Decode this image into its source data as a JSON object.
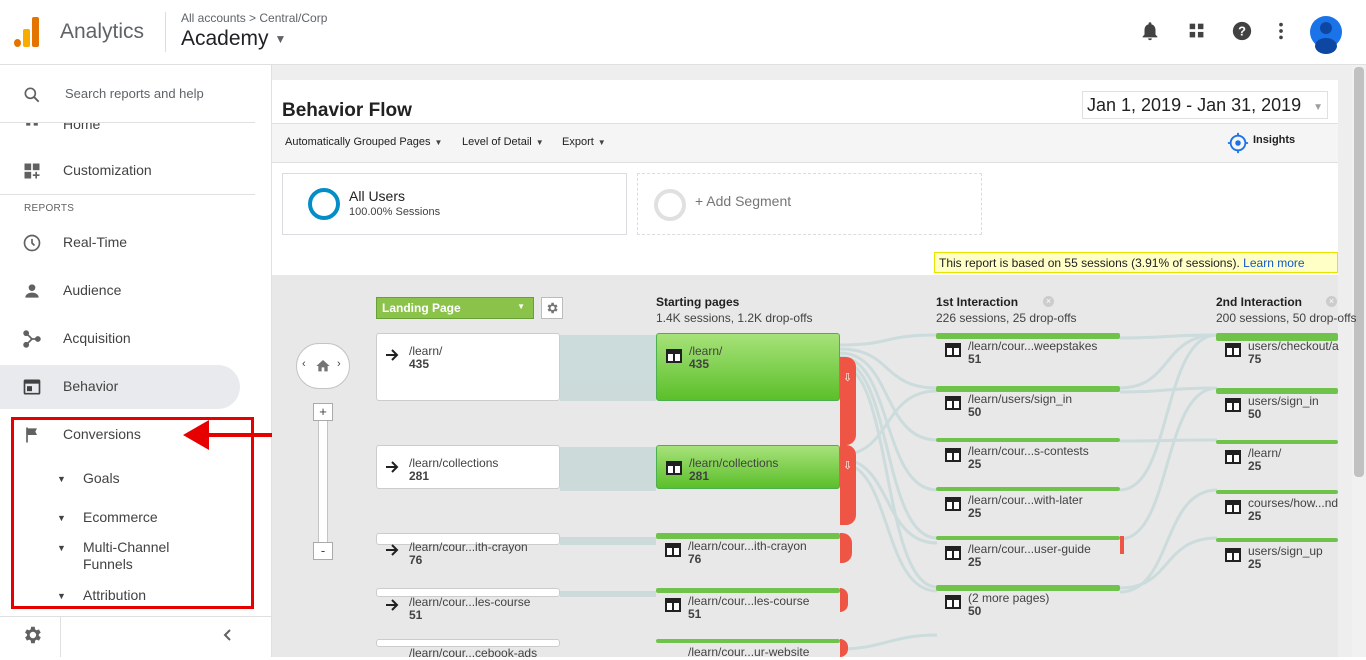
{
  "topbar": {
    "app_name": "Analytics",
    "breadcrumb": "All accounts  >  Central/Corp",
    "account_name": "Academy"
  },
  "sidebar": {
    "search_label": "Search reports and help",
    "home_label": "Home",
    "customization_label": "Customization",
    "section_label": "REPORTS",
    "items": [
      {
        "label": "Real-Time",
        "icon": "clock-icon"
      },
      {
        "label": "Audience",
        "icon": "person-icon"
      },
      {
        "label": "Acquisition",
        "icon": "acquisition-icon"
      },
      {
        "label": "Behavior",
        "icon": "behavior-icon"
      },
      {
        "label": "Conversions",
        "icon": "flag-icon"
      }
    ],
    "conversions_subitems": [
      {
        "label": "Goals"
      },
      {
        "label": "Ecommerce"
      },
      {
        "label": "Multi-Channel Funnels"
      },
      {
        "label": "Attribution"
      }
    ]
  },
  "report": {
    "title": "Behavior Flow",
    "date_range": "Jan 1, 2019 - Jan 31, 2019",
    "toolbar": {
      "grouped_pages": "Automatically Grouped Pages",
      "level_of_detail": "Level of Detail",
      "export": "Export",
      "insights": "Insights"
    },
    "segment": {
      "name": "All Users",
      "sessions": "100.00% Sessions",
      "add": "+ Add Segment"
    },
    "notice": {
      "text": "This report is based on 55 sessions (3.91% of sessions).",
      "link": "Learn more"
    },
    "flow": {
      "dimension": "Landing Page",
      "columns": [
        {
          "title": "Starting pages",
          "subtitle": "1.4K sessions, 1.2K drop-offs"
        },
        {
          "title": "1st Interaction",
          "subtitle": "226 sessions, 25 drop-offs"
        },
        {
          "title": "2nd Interaction",
          "subtitle": "200 sessions, 50 drop-offs"
        }
      ],
      "landing_nodes": [
        {
          "name": "/learn/",
          "count": "435"
        },
        {
          "name": "/learn/collections",
          "count": "281"
        },
        {
          "name": "/learn/cour...ith-crayon",
          "count": "76"
        },
        {
          "name": "/learn/cour...les-course",
          "count": "51"
        },
        {
          "name": "/learn/cour...cebook-ads",
          "count": ""
        }
      ],
      "starting_nodes": [
        {
          "name": "/learn/",
          "count": "435"
        },
        {
          "name": "/learn/collections",
          "count": "281"
        },
        {
          "name": "/learn/cour...ith-crayon",
          "count": "76"
        },
        {
          "name": "/learn/cour...les-course",
          "count": "51"
        },
        {
          "name": "/learn/cour...ur-website",
          "count": ""
        }
      ],
      "first_interaction": [
        {
          "name": "/learn/cour...weepstakes",
          "count": "51"
        },
        {
          "name": "/learn/users/sign_in",
          "count": "50"
        },
        {
          "name": "/learn/cour...s-contests",
          "count": "25"
        },
        {
          "name": "/learn/cour...with-later",
          "count": "25"
        },
        {
          "name": "/learn/cour...user-guide",
          "count": "25"
        },
        {
          "name": "(2 more pages)",
          "count": "50"
        }
      ],
      "second_interaction": [
        {
          "name": "users/checkout/a",
          "count": "75"
        },
        {
          "name": "users/sign_in",
          "count": "50"
        },
        {
          "name": "/learn/",
          "count": "25"
        },
        {
          "name": "courses/how...nd",
          "count": "25"
        },
        {
          "name": "users/sign_up",
          "count": "25"
        }
      ]
    }
  },
  "colors": {
    "accent_green": "#6fc34b",
    "dropoff_red": "#ee5544",
    "highlight_red": "#e60000",
    "link_blue": "#1155cc"
  }
}
